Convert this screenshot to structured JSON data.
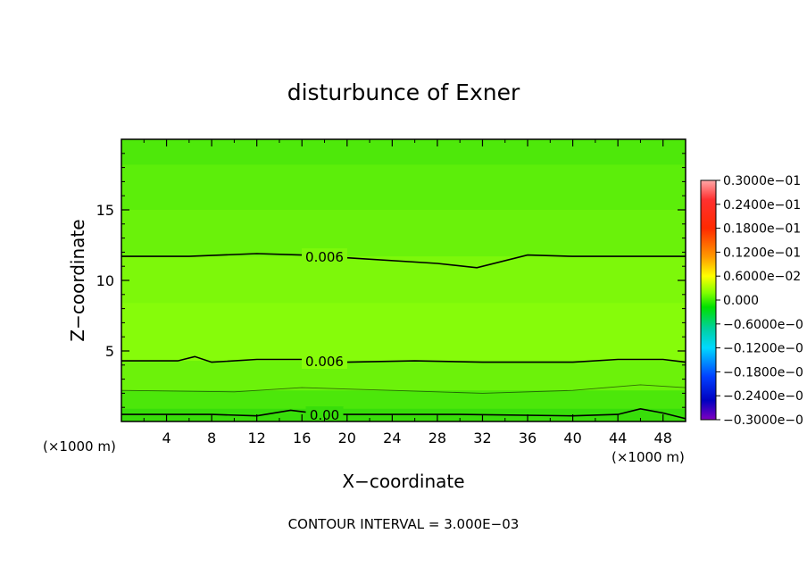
{
  "chart_data": {
    "type": "heatmap",
    "title": "disturbunce of Exner",
    "xlabel": "X−coordinate",
    "ylabel": "Z−coordinate",
    "x_unit_left": "(×1000 m)",
    "x_unit_right": "(×1000 m)",
    "footer": "CONTOUR INTERVAL = 3.000E−03",
    "xlim": [
      0,
      50
    ],
    "ylim": [
      0,
      20
    ],
    "x_ticks": [
      4,
      8,
      12,
      16,
      20,
      24,
      28,
      32,
      36,
      40,
      44,
      48
    ],
    "y_ticks": [
      5,
      10,
      15
    ],
    "grid": false,
    "colorbar": {
      "labels": [
        "0.3000e−01",
        "0.2400e−01",
        "0.1800e−01",
        "0.1200e−01",
        "0.6000e−02",
        "0.000",
        "−0.6000e−0",
        "−0.1200e−0",
        "−0.1800e−0",
        "−0.2400e−0",
        "−0.3000e−0"
      ],
      "min": -0.03,
      "max": 0.03
    },
    "bands": [
      {
        "z_top": 20.0,
        "value": 0.004,
        "color": "#4ee80a"
      },
      {
        "z_top": 18.2,
        "value": 0.0048,
        "color": "#5cee0a"
      },
      {
        "z_top": 15.0,
        "value": 0.0056,
        "color": "#6af20a"
      },
      {
        "z_top": 11.7,
        "value": 0.0064,
        "color": "#7df80a"
      },
      {
        "z_top": 8.4,
        "value": 0.007,
        "color": "#86fc0a"
      },
      {
        "z_top": 4.3,
        "value": 0.0055,
        "color": "#6cf20a"
      },
      {
        "z_top": 2.2,
        "value": 0.0035,
        "color": "#4ce70a"
      },
      {
        "z_top": 0.9,
        "value": 0.0015,
        "color": "#38de0a"
      }
    ],
    "contours": [
      {
        "label": "0.006",
        "label_x": 18,
        "points": [
          [
            0,
            11.7
          ],
          [
            6,
            11.7
          ],
          [
            12,
            11.9
          ],
          [
            16,
            11.8
          ],
          [
            20,
            11.6
          ],
          [
            28,
            11.2
          ],
          [
            31.5,
            10.9
          ],
          [
            36,
            11.8
          ],
          [
            40,
            11.7
          ],
          [
            50,
            11.7
          ]
        ]
      },
      {
        "label": "0.006",
        "label_x": 18,
        "points": [
          [
            0,
            4.3
          ],
          [
            5,
            4.3
          ],
          [
            6.5,
            4.6
          ],
          [
            8,
            4.2
          ],
          [
            12,
            4.4
          ],
          [
            16,
            4.4
          ],
          [
            20,
            4.2
          ],
          [
            26,
            4.3
          ],
          [
            32,
            4.2
          ],
          [
            40,
            4.2
          ],
          [
            44,
            4.4
          ],
          [
            48,
            4.4
          ],
          [
            50,
            4.2
          ]
        ]
      },
      {
        "label": "0.00",
        "label_x": 18,
        "points": [
          [
            0,
            0.5
          ],
          [
            8,
            0.5
          ],
          [
            12,
            0.4
          ],
          [
            15,
            0.8
          ],
          [
            18,
            0.5
          ],
          [
            30,
            0.5
          ],
          [
            40,
            0.4
          ],
          [
            44,
            0.5
          ],
          [
            46,
            0.9
          ],
          [
            48,
            0.6
          ],
          [
            50,
            0.2
          ]
        ]
      },
      {
        "label": "",
        "label_x": null,
        "points": [
          [
            0,
            2.2
          ],
          [
            10,
            2.1
          ],
          [
            16,
            2.4
          ],
          [
            24,
            2.2
          ],
          [
            32,
            2.0
          ],
          [
            40,
            2.2
          ],
          [
            46,
            2.6
          ],
          [
            50,
            2.4
          ]
        ]
      }
    ]
  }
}
